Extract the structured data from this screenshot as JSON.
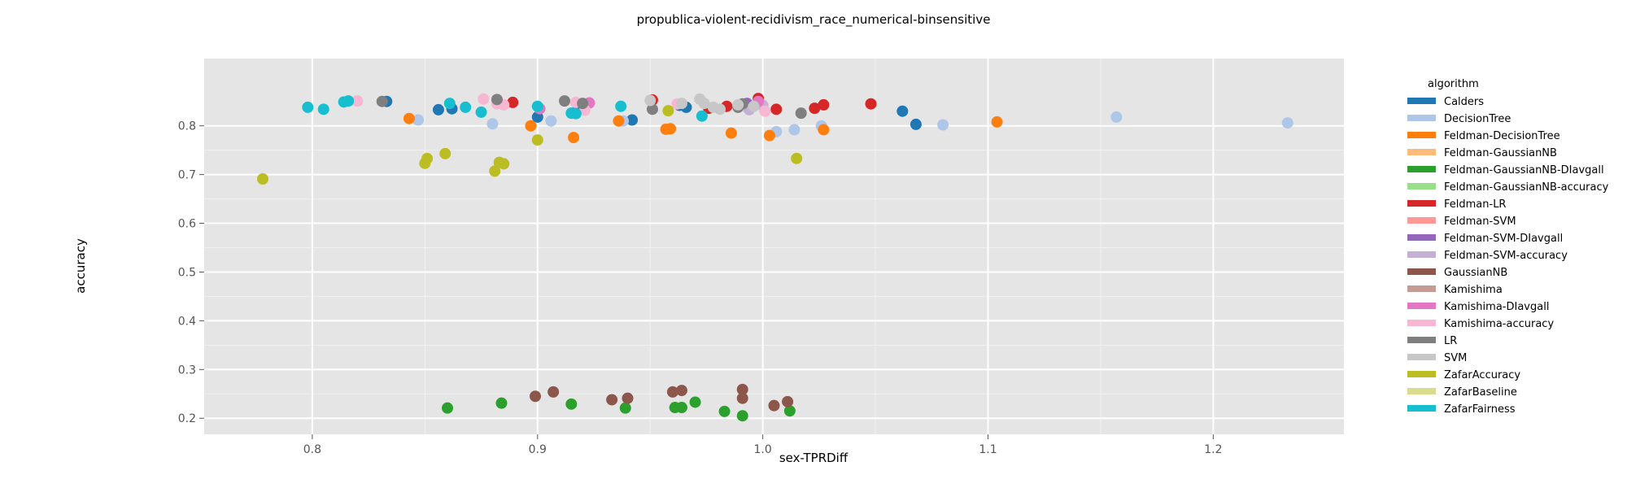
{
  "chart_data": {
    "type": "scatter",
    "title": "propublica-violent-recidivism_race_numerical-binsensitive",
    "xlabel": "sex-TPRDiff",
    "ylabel": "accuracy",
    "xlim": [
      0.752,
      1.258
    ],
    "ylim": [
      0.167,
      0.938
    ],
    "xticks": [
      0.8,
      0.9,
      1.0,
      1.1,
      1.2
    ],
    "xtick_labels": [
      "0.8",
      "0.9",
      "1.0",
      "1.1",
      "1.2"
    ],
    "yticks": [
      0.2,
      0.3,
      0.4,
      0.5,
      0.6,
      0.7,
      0.8
    ],
    "ytick_labels": [
      "0.2",
      "0.3",
      "0.4",
      "0.5",
      "0.6",
      "0.7",
      "0.8"
    ],
    "grid": true,
    "legend_title": "algorithm",
    "legend_position": "right",
    "series": [
      {
        "name": "Calders",
        "color": "#1f77b4",
        "points": [
          [
            0.833,
            0.85
          ],
          [
            0.856,
            0.833
          ],
          [
            0.862,
            0.835
          ],
          [
            0.9,
            0.818
          ],
          [
            0.917,
            0.828
          ],
          [
            0.942,
            0.812
          ],
          [
            0.963,
            0.842
          ],
          [
            0.966,
            0.838
          ],
          [
            1.062,
            0.83
          ],
          [
            1.068,
            0.803
          ]
        ]
      },
      {
        "name": "DecisionTree",
        "color": "#aec7e8",
        "points": [
          [
            0.847,
            0.812
          ],
          [
            0.88,
            0.804
          ],
          [
            0.906,
            0.81
          ],
          [
            0.938,
            0.81
          ],
          [
            0.993,
            0.838
          ],
          [
            1.006,
            0.788
          ],
          [
            1.014,
            0.792
          ],
          [
            1.026,
            0.8
          ],
          [
            1.08,
            0.802
          ],
          [
            1.157,
            0.818
          ],
          [
            1.233,
            0.806
          ]
        ]
      },
      {
        "name": "Feldman-DecisionTree",
        "color": "#ff7f0e",
        "points": [
          [
            0.843,
            0.815
          ],
          [
            0.897,
            0.8
          ],
          [
            0.916,
            0.776
          ],
          [
            0.936,
            0.81
          ],
          [
            0.957,
            0.793
          ],
          [
            0.959,
            0.794
          ],
          [
            0.986,
            0.785
          ],
          [
            1.003,
            0.78
          ],
          [
            1.027,
            0.792
          ],
          [
            1.104,
            0.808
          ]
        ]
      },
      {
        "name": "Feldman-GaussianNB",
        "color": "#ffbb78",
        "points": []
      },
      {
        "name": "Feldman-GaussianNB-DIavgall",
        "color": "#2ca02c",
        "points": [
          [
            0.86,
            0.221
          ],
          [
            0.884,
            0.231
          ],
          [
            0.915,
            0.229
          ],
          [
            0.939,
            0.221
          ],
          [
            0.961,
            0.222
          ],
          [
            0.964,
            0.222
          ],
          [
            0.97,
            0.233
          ],
          [
            0.983,
            0.214
          ],
          [
            0.991,
            0.205
          ],
          [
            1.012,
            0.215
          ]
        ]
      },
      {
        "name": "Feldman-GaussianNB-accuracy",
        "color": "#98df8a",
        "points": []
      },
      {
        "name": "Feldman-LR",
        "color": "#d62728",
        "points": [
          [
            0.889,
            0.848
          ],
          [
            0.951,
            0.853
          ],
          [
            0.976,
            0.836
          ],
          [
            0.984,
            0.84
          ],
          [
            0.998,
            0.856
          ],
          [
            1.006,
            0.834
          ],
          [
            1.023,
            0.836
          ],
          [
            1.027,
            0.843
          ],
          [
            1.048,
            0.845
          ]
        ]
      },
      {
        "name": "Feldman-SVM",
        "color": "#ff9896",
        "points": []
      },
      {
        "name": "Feldman-SVM-DIavgall",
        "color": "#9467bd",
        "points": [
          [
            0.993,
            0.846
          ]
        ]
      },
      {
        "name": "Feldman-SVM-accuracy",
        "color": "#c5b0d5",
        "points": [
          [
            0.994,
            0.833
          ],
          [
            1.0,
            0.842
          ]
        ]
      },
      {
        "name": "GaussianNB",
        "color": "#8c564b",
        "points": [
          [
            0.899,
            0.245
          ],
          [
            0.907,
            0.254
          ],
          [
            0.933,
            0.238
          ],
          [
            0.94,
            0.241
          ],
          [
            0.96,
            0.254
          ],
          [
            0.964,
            0.257
          ],
          [
            0.991,
            0.259
          ],
          [
            0.991,
            0.241
          ],
          [
            1.005,
            0.226
          ],
          [
            1.011,
            0.234
          ]
        ]
      },
      {
        "name": "Kamishima",
        "color": "#c49c94",
        "points": []
      },
      {
        "name": "Kamishima-DIavgall",
        "color": "#e377c2",
        "points": [
          [
            0.901,
            0.835
          ],
          [
            0.923,
            0.847
          ],
          [
            0.998,
            0.85
          ]
        ]
      },
      {
        "name": "Kamishima-accuracy",
        "color": "#f7b6d2",
        "points": [
          [
            0.82,
            0.851
          ],
          [
            0.876,
            0.855
          ],
          [
            0.882,
            0.845
          ],
          [
            0.885,
            0.843
          ],
          [
            0.917,
            0.848
          ],
          [
            0.921,
            0.832
          ],
          [
            0.962,
            0.845
          ],
          [
            1.001,
            0.83
          ]
        ]
      },
      {
        "name": "LR",
        "color": "#7f7f7f",
        "points": [
          [
            0.831,
            0.85
          ],
          [
            0.882,
            0.854
          ],
          [
            0.912,
            0.851
          ],
          [
            0.92,
            0.846
          ],
          [
            0.951,
            0.834
          ],
          [
            0.989,
            0.838
          ],
          [
            0.991,
            0.845
          ],
          [
            1.017,
            0.826
          ]
        ]
      },
      {
        "name": "SVM",
        "color": "#c7c7c7",
        "points": [
          [
            0.95,
            0.852
          ],
          [
            0.964,
            0.846
          ],
          [
            0.972,
            0.855
          ],
          [
            0.974,
            0.846
          ],
          [
            0.978,
            0.838
          ],
          [
            0.981,
            0.834
          ],
          [
            0.989,
            0.843
          ],
          [
            0.996,
            0.84
          ]
        ]
      },
      {
        "name": "ZafarAccuracy",
        "color": "#bcbd22",
        "points": [
          [
            0.778,
            0.691
          ],
          [
            0.85,
            0.723
          ],
          [
            0.851,
            0.733
          ],
          [
            0.859,
            0.743
          ],
          [
            0.881,
            0.707
          ],
          [
            0.883,
            0.725
          ],
          [
            0.885,
            0.722
          ],
          [
            0.9,
            0.771
          ],
          [
            0.958,
            0.831
          ],
          [
            1.015,
            0.733
          ]
        ]
      },
      {
        "name": "ZafarBaseline",
        "color": "#dbdb8d",
        "points": []
      },
      {
        "name": "ZafarFairness",
        "color": "#17becf",
        "points": [
          [
            0.798,
            0.838
          ],
          [
            0.805,
            0.834
          ],
          [
            0.814,
            0.849
          ],
          [
            0.816,
            0.851
          ],
          [
            0.861,
            0.846
          ],
          [
            0.868,
            0.838
          ],
          [
            0.875,
            0.828
          ],
          [
            0.9,
            0.84
          ],
          [
            0.915,
            0.826
          ],
          [
            0.917,
            0.825
          ],
          [
            0.937,
            0.84
          ],
          [
            0.973,
            0.82
          ]
        ]
      }
    ]
  }
}
